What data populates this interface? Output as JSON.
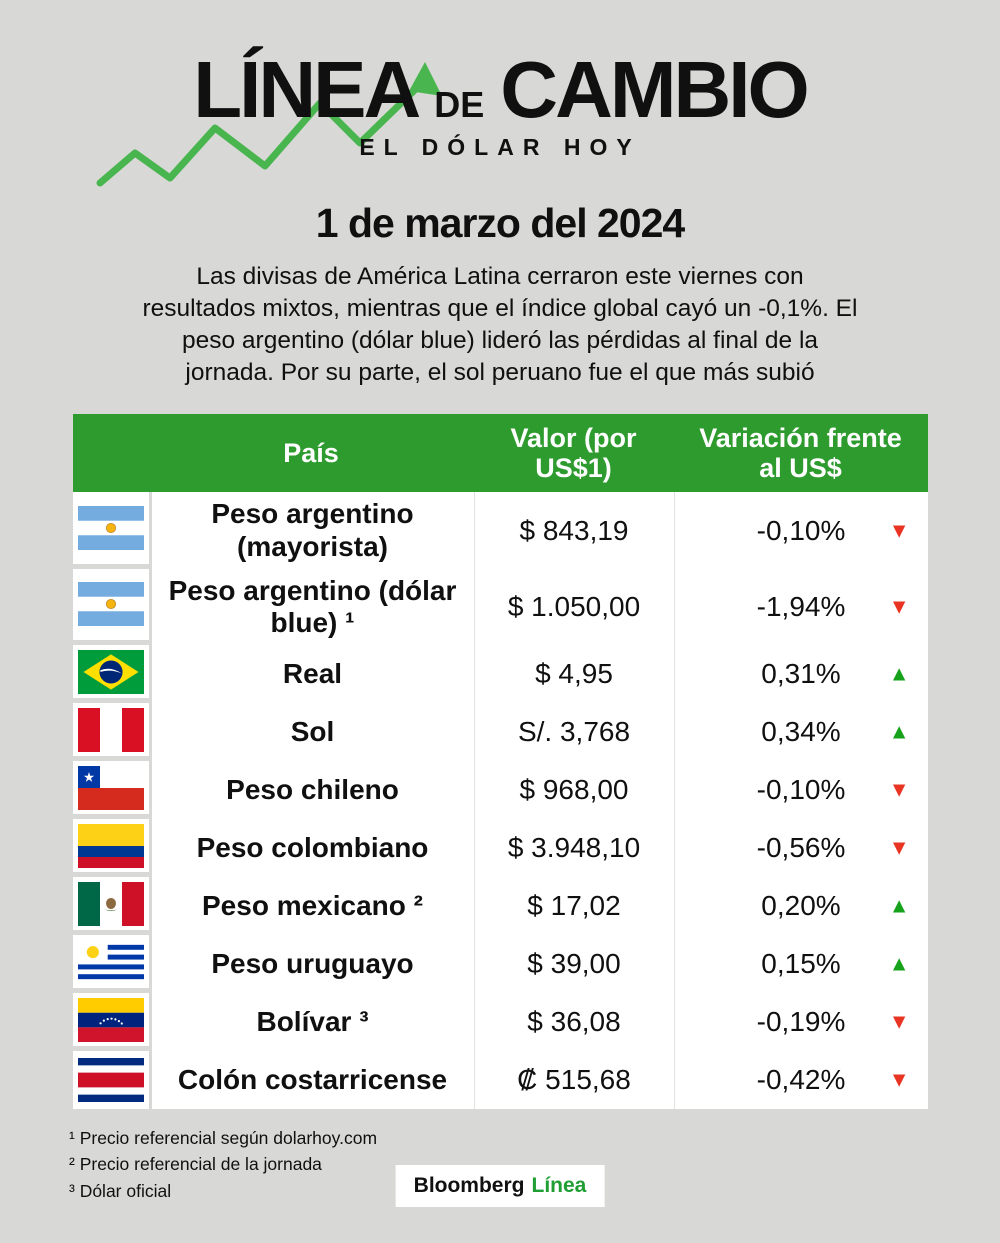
{
  "colors": {
    "background": "#d8d8d6",
    "header_green": "#2e9b2e",
    "up_green": "#16a21a",
    "down_red": "#e93423",
    "brand_green": "#1f9e33",
    "logo_line_green": "#49b54f"
  },
  "header": {
    "logo": {
      "linea": "LÍNEA",
      "de": "DE",
      "cambio": "CAMBIO"
    },
    "subtitle": "EL DÓLAR HOY",
    "date": "1 de marzo del 2024",
    "description": "Las divisas de América Latina cerraron este viernes con resultados mixtos, mientras que el índice global cayó un -0,1%. El peso argentino (dólar blue) lideró las pérdidas al final de la jornada. Por su parte, el sol peruano fue el que más subió"
  },
  "table": {
    "headers": {
      "country": "País",
      "value": "Valor (por US$1)",
      "change": "Variación frente al US$"
    },
    "rows": [
      {
        "flag": "argentina",
        "country": "Peso argentino (mayorista)",
        "value": "$ 843,19",
        "change": "-0,10%",
        "direction": "down"
      },
      {
        "flag": "argentina",
        "country": "Peso argentino (dólar blue) ¹",
        "value": "$ 1.050,00",
        "change": "-1,94%",
        "direction": "down"
      },
      {
        "flag": "brazil",
        "country": "Real",
        "value": "$ 4,95",
        "change": "0,31%",
        "direction": "up"
      },
      {
        "flag": "peru",
        "country": "Sol",
        "value": "S/. 3,768",
        "change": "0,34%",
        "direction": "up"
      },
      {
        "flag": "chile",
        "country": "Peso chileno",
        "value": "$ 968,00",
        "change": "-0,10%",
        "direction": "down"
      },
      {
        "flag": "colombia",
        "country": "Peso colombiano",
        "value": "$ 3.948,10",
        "change": "-0,56%",
        "direction": "down"
      },
      {
        "flag": "mexico",
        "country": "Peso mexicano ²",
        "value": "$ 17,02",
        "change": "0,20%",
        "direction": "up"
      },
      {
        "flag": "uruguay",
        "country": "Peso uruguayo",
        "value": "$ 39,00",
        "change": "0,15%",
        "direction": "up"
      },
      {
        "flag": "venezuela",
        "country": "Bolívar ³",
        "value": "$ 36,08",
        "change": "-0,19%",
        "direction": "down"
      },
      {
        "flag": "costa_rica",
        "country": "Colón costarricense",
        "value": "₡ 515,68",
        "change": "-0,42%",
        "direction": "down"
      }
    ]
  },
  "footnotes": [
    "¹ Precio referencial según dolarhoy.com",
    "² Precio referencial de la jornada",
    "³ Dólar oficial"
  ],
  "footer": {
    "brand_black": "Bloomberg",
    "brand_green": "Línea"
  },
  "chart_data": {
    "type": "table",
    "title": "Línea de Cambio — El Dólar Hoy — 1 de marzo del 2024",
    "columns": [
      "País",
      "Valor (por US$1)",
      "Variación frente al US$"
    ],
    "rows": [
      [
        "Peso argentino (mayorista)",
        "$ 843,19",
        "-0,10%"
      ],
      [
        "Peso argentino (dólar blue) ¹",
        "$ 1.050,00",
        "-1,94%"
      ],
      [
        "Real",
        "$ 4,95",
        "0,31%"
      ],
      [
        "Sol",
        "S/. 3,768",
        "0,34%"
      ],
      [
        "Peso chileno",
        "$ 968,00",
        "-0,10%"
      ],
      [
        "Peso colombiano",
        "$ 3.948,10",
        "-0,56%"
      ],
      [
        "Peso mexicano ²",
        "$ 17,02",
        "0,20%"
      ],
      [
        "Peso uruguayo",
        "$ 39,00",
        "0,15%"
      ],
      [
        "Bolívar ³",
        "$ 36,08",
        "-0,19%"
      ],
      [
        "Colón costarricense",
        "₡ 515,68",
        "-0,42%"
      ]
    ]
  }
}
